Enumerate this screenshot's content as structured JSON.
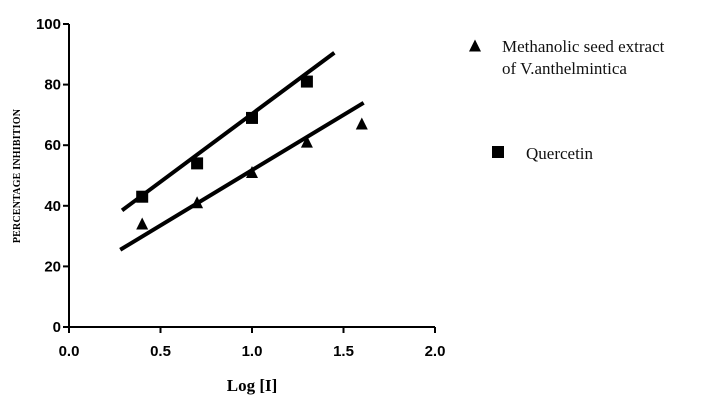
{
  "chart_data": {
    "type": "scatter",
    "xlabel": "Log [I]",
    "ylabel": "PERCENTAGE INHIBITION",
    "xlim": [
      0.0,
      2.0
    ],
    "ylim": [
      0,
      100
    ],
    "xticks": [
      "0.0",
      "0.5",
      "1.0",
      "1.5",
      "2.0"
    ],
    "yticks": [
      "0",
      "20",
      "40",
      "60",
      "80",
      "100"
    ],
    "grid": false,
    "legend_position": "right",
    "series": [
      {
        "name": "Methanolic seed extract of V.anthelmintica",
        "name_lines": [
          "Methanolic seed extract",
          "of V.anthelmintica"
        ],
        "marker": "triangle",
        "x": [
          0.4,
          0.7,
          1.0,
          1.3,
          1.6
        ],
        "y": [
          34,
          41,
          51,
          61,
          67
        ],
        "fit_line": {
          "x": [
            0.28,
            1.61
          ],
          "y": [
            25.5,
            74
          ]
        }
      },
      {
        "name": "Quercetin",
        "name_lines": [
          "Quercetin"
        ],
        "marker": "square",
        "x": [
          0.4,
          0.7,
          1.0,
          1.3
        ],
        "y": [
          43,
          54,
          69,
          81
        ],
        "fit_line": {
          "x": [
            0.29,
            1.45
          ],
          "y": [
            38.5,
            90.5
          ]
        }
      }
    ],
    "color": "#000000"
  }
}
